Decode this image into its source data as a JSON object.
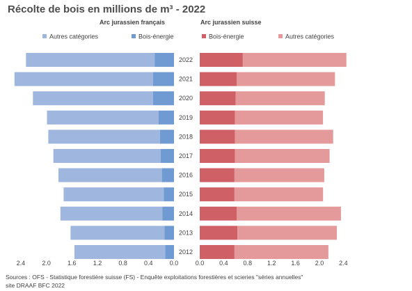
{
  "title": "Récolte de bois en millions de m³ - 2022",
  "sources": [
    "Sources : OFS - Statistique forestière suisse (FS)  - Enquête exploitations forestières et scieries \"séries annuelles\"",
    "site DRAAF BFC 2022"
  ],
  "colors": {
    "fr_autres": "#9fb7de",
    "fr_bois": "#6f9bd2",
    "ch_bois": "#cf6066",
    "ch_autres": "#e49a9a"
  },
  "chart_data": [
    {
      "type": "bar",
      "orientation": "horizontal",
      "stacked": true,
      "reversed_x_axis": true,
      "panel_title": "Arc jurassien français",
      "categories": [
        "2022",
        "2021",
        "2020",
        "2019",
        "2018",
        "2017",
        "2016",
        "2015",
        "2014",
        "2013",
        "2012"
      ],
      "series": [
        {
          "name": "Bois-énergie",
          "color": "#6f9bd2",
          "values": [
            0.3,
            0.33,
            0.33,
            0.24,
            0.22,
            0.21,
            0.19,
            0.16,
            0.18,
            0.15,
            0.14
          ]
        },
        {
          "name": "Autres catégories",
          "color": "#9fb7de",
          "values": [
            2.02,
            2.17,
            1.88,
            1.75,
            1.75,
            1.68,
            1.62,
            1.57,
            1.6,
            1.47,
            1.42
          ]
        }
      ],
      "legend": [
        "Autres catégories",
        "Bois-énergie"
      ],
      "legend_position": "top",
      "xlim": [
        0,
        2.4
      ],
      "xticks": [
        "2.4",
        "2.0",
        "1.6",
        "1.2",
        "0.8",
        "0.4",
        "0.0"
      ],
      "grid": false
    },
    {
      "type": "bar",
      "orientation": "horizontal",
      "stacked": true,
      "panel_title": "Arc jurassien suisse",
      "categories": [
        "2022",
        "2021",
        "2020",
        "2019",
        "2018",
        "2017",
        "2016",
        "2015",
        "2014",
        "2013",
        "2012"
      ],
      "series": [
        {
          "name": "Bois-énergie",
          "color": "#cf6066",
          "values": [
            0.72,
            0.62,
            0.6,
            0.59,
            0.59,
            0.59,
            0.58,
            0.58,
            0.62,
            0.63,
            0.58
          ]
        },
        {
          "name": "Autres catégories",
          "color": "#e49a9a",
          "values": [
            1.73,
            1.64,
            1.49,
            1.47,
            1.64,
            1.58,
            1.5,
            1.48,
            1.74,
            1.66,
            1.57
          ]
        }
      ],
      "legend": [
        "Bois-énergie",
        "Autres catégories"
      ],
      "legend_position": "top",
      "xlim": [
        0,
        2.4
      ],
      "xticks": [
        "0.0",
        "0.4",
        "0.8",
        "1.2",
        "1.6",
        "2.0",
        "2.4"
      ],
      "grid": false
    }
  ]
}
